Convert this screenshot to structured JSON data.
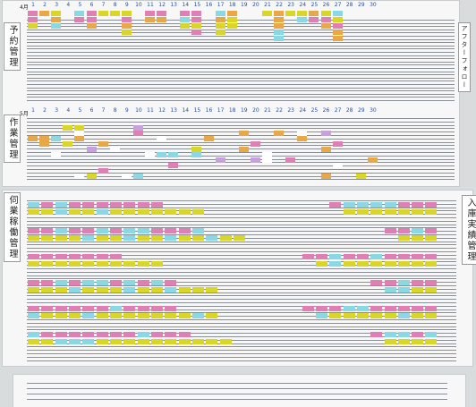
{
  "reservation_panel": {
    "label": "予約管理",
    "month": "4月",
    "days": [
      1,
      2,
      3,
      4,
      5,
      6,
      7,
      8,
      9,
      10,
      11,
      12,
      13,
      14,
      15,
      16,
      17,
      18,
      19,
      20,
      21,
      22,
      23,
      24,
      25,
      26,
      27,
      28,
      29,
      30
    ]
  },
  "work_panel": {
    "label": "作業管理",
    "month": "5月",
    "days": [
      1,
      2,
      3,
      4,
      5,
      6,
      7,
      8,
      9,
      10,
      11,
      12,
      13,
      14,
      15,
      16,
      17,
      18,
      19,
      20,
      21,
      22,
      23,
      24,
      25,
      26,
      27,
      28,
      29,
      30
    ]
  },
  "after_follow_label": "アフターフォロー",
  "operation_panel": {
    "label": "伺業稼働管理"
  },
  "stock_label": "入庫実績管理"
}
